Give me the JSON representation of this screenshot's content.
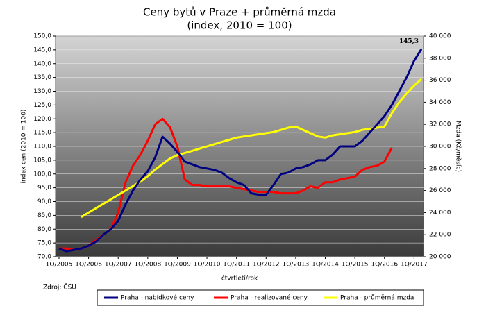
{
  "chart_data": {
    "type": "line",
    "title": "Ceny bytů v Praze + průměrná mzda",
    "subtitle": "(index, 2010 = 100)",
    "x_label": "čtvrtletí/rok",
    "y_label": "index cen (2010 = 100)",
    "y2_label": "Mzda (Kč/měsíc)",
    "source": "Zdroj: ČSU",
    "categories": [
      "1Q/2005",
      null,
      null,
      null,
      "1Q/2006",
      null,
      null,
      null,
      "1Q/2007",
      null,
      null,
      null,
      "1Q/2008",
      null,
      null,
      null,
      "1Q/2009",
      null,
      null,
      null,
      "1Q/2010",
      null,
      null,
      null,
      "1Q/2011",
      null,
      null,
      null,
      "1Q/2012",
      null,
      null,
      null,
      "1Q/2013",
      null,
      null,
      null,
      "1Q/2014",
      null,
      null,
      null,
      "1Q/2015",
      null,
      null,
      null,
      "1Q/2016",
      null,
      null,
      null,
      "1Q/2017",
      null
    ],
    "series": [
      {
        "name": "Praha - nabídkové ceny",
        "color": "#000080",
        "values": [
          73,
          72,
          72.5,
          73,
          74,
          75.5,
          78,
          80,
          83,
          89,
          94,
          98,
          101,
          106,
          113.5,
          111,
          108,
          104.5,
          103.5,
          102.5,
          102,
          101.5,
          100.5,
          98.5,
          97,
          96,
          93,
          92.5,
          92.5,
          96,
          100,
          100.5,
          102,
          102.5,
          103.5,
          105,
          105,
          107,
          110,
          110,
          110,
          112,
          115,
          118,
          121,
          125,
          130,
          135,
          141,
          145.3
        ],
        "value_labels": [
          null,
          null,
          null,
          null,
          null,
          null,
          null,
          null,
          null,
          null,
          null,
          null,
          null,
          null,
          null,
          null,
          null,
          null,
          null,
          null,
          null,
          null,
          null,
          null,
          null,
          null,
          null,
          null,
          null,
          null,
          null,
          null,
          null,
          null,
          null,
          null,
          null,
          null,
          null,
          null,
          null,
          null,
          null,
          null,
          null,
          null,
          null,
          null,
          null,
          "145,3"
        ]
      },
      {
        "name": "Praha - realizované ceny",
        "color": "#ff0000",
        "values": [
          73,
          73,
          72.5,
          73,
          74,
          76,
          78,
          80,
          86,
          97,
          103,
          107,
          112,
          118,
          120,
          117,
          110,
          98,
          96,
          96,
          95.5,
          95.5,
          95.5,
          95.5,
          95,
          94.5,
          94,
          93.5,
          93.5,
          93.5,
          93,
          93,
          93,
          94,
          95.5,
          95,
          97,
          97,
          98,
          98.5,
          99,
          101.5,
          102.5,
          103,
          104.5,
          109.5,
          null,
          null,
          null,
          null
        ]
      },
      {
        "name": "Praha - průměrná mzda",
        "color": "#ffff00",
        "axis": "y2",
        "values": [
          null,
          null,
          null,
          23600,
          24000,
          24400,
          24800,
          25200,
          25600,
          26000,
          26400,
          26800,
          27300,
          27900,
          28400,
          28900,
          29200,
          29400,
          29600,
          29800,
          30000,
          30200,
          30400,
          30600,
          30800,
          30900,
          31000,
          31100,
          31200,
          31300,
          31500,
          31700,
          31800,
          31500,
          31200,
          30900,
          30800,
          31000,
          31100,
          31200,
          31300,
          31500,
          31600,
          31700,
          31800,
          33000,
          34000,
          34800,
          35500,
          36100
        ]
      }
    ],
    "ylim": [
      70,
      150
    ],
    "yticks": [
      {
        "value": 70,
        "label": "70,0"
      },
      {
        "value": 75,
        "label": "75,0"
      },
      {
        "value": 80,
        "label": "80,0"
      },
      {
        "value": 85,
        "label": "85,0"
      },
      {
        "value": 90,
        "label": "90,0"
      },
      {
        "value": 95,
        "label": "95,0"
      },
      {
        "value": 100,
        "label": "100,0"
      },
      {
        "value": 105,
        "label": "105,0"
      },
      {
        "value": 110,
        "label": "110,0"
      },
      {
        "value": 115,
        "label": "115,0"
      },
      {
        "value": 120,
        "label": "120,0"
      },
      {
        "value": 125,
        "label": "125,0"
      },
      {
        "value": 130,
        "label": "130,0"
      },
      {
        "value": 135,
        "label": "135,0"
      },
      {
        "value": 140,
        "label": "140,0"
      },
      {
        "value": 145,
        "label": "145,0"
      },
      {
        "value": 150,
        "label": "150,0"
      }
    ],
    "y2lim": [
      20000,
      40000
    ],
    "y2ticks": [
      {
        "value": 20000,
        "label": "20 000"
      },
      {
        "value": 22000,
        "label": "22 000"
      },
      {
        "value": 24000,
        "label": "24 000"
      },
      {
        "value": 26000,
        "label": "26 000"
      },
      {
        "value": 28000,
        "label": "28 000"
      },
      {
        "value": 30000,
        "label": "30 000"
      },
      {
        "value": 32000,
        "label": "32 000"
      },
      {
        "value": 34000,
        "label": "34 000"
      },
      {
        "value": 36000,
        "label": "36 000"
      },
      {
        "value": 38000,
        "label": "38 000"
      },
      {
        "value": 40000,
        "label": "40 000"
      }
    ],
    "grid": true
  }
}
